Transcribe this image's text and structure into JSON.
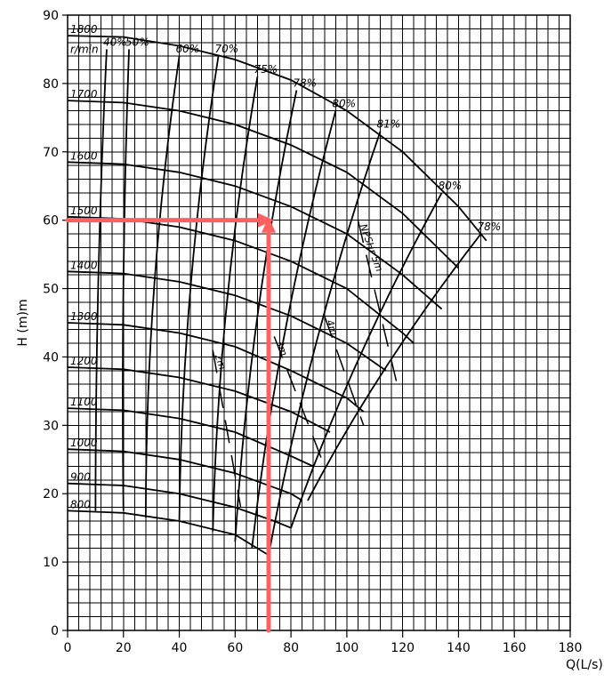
{
  "chart_data": {
    "type": "line",
    "xlabel": "Q(L/s)",
    "ylabel": "H (m)m",
    "xlim": [
      0,
      180
    ],
    "ylim": [
      0,
      90
    ],
    "x_ticks": [
      0,
      20,
      40,
      60,
      80,
      100,
      120,
      140,
      160,
      180
    ],
    "y_ticks": [
      0,
      10,
      20,
      30,
      40,
      50,
      60,
      70,
      80,
      90
    ],
    "speed_unit": "r/min",
    "series": [
      {
        "name": "1800",
        "points": [
          [
            0,
            87
          ],
          [
            20,
            86.8
          ],
          [
            40,
            85.5
          ],
          [
            60,
            83.5
          ],
          [
            80,
            80.5
          ],
          [
            100,
            76
          ],
          [
            120,
            70
          ],
          [
            140,
            62
          ],
          [
            150,
            57
          ]
        ]
      },
      {
        "name": "1700",
        "points": [
          [
            0,
            77.5
          ],
          [
            20,
            77.2
          ],
          [
            40,
            76
          ],
          [
            60,
            74
          ],
          [
            80,
            71
          ],
          [
            100,
            67
          ],
          [
            120,
            61
          ],
          [
            140,
            53
          ]
        ]
      },
      {
        "name": "1600",
        "points": [
          [
            0,
            68.5
          ],
          [
            20,
            68.2
          ],
          [
            40,
            67
          ],
          [
            60,
            65
          ],
          [
            80,
            62
          ],
          [
            100,
            58
          ],
          [
            120,
            52
          ],
          [
            134,
            47
          ]
        ]
      },
      {
        "name": "1500",
        "points": [
          [
            0,
            60.5
          ],
          [
            20,
            60.2
          ],
          [
            40,
            59
          ],
          [
            60,
            57
          ],
          [
            80,
            54
          ],
          [
            100,
            50
          ],
          [
            120,
            43.5
          ],
          [
            124,
            42
          ]
        ]
      },
      {
        "name": "1400",
        "points": [
          [
            0,
            52.5
          ],
          [
            20,
            52.2
          ],
          [
            40,
            51
          ],
          [
            60,
            49
          ],
          [
            80,
            46
          ],
          [
            100,
            42
          ],
          [
            114,
            38
          ]
        ]
      },
      {
        "name": "1300",
        "points": [
          [
            0,
            45
          ],
          [
            20,
            44.7
          ],
          [
            40,
            43.5
          ],
          [
            60,
            41.5
          ],
          [
            80,
            38
          ],
          [
            100,
            34
          ],
          [
            106,
            32
          ]
        ]
      },
      {
        "name": "1200",
        "points": [
          [
            0,
            38.5
          ],
          [
            20,
            38.2
          ],
          [
            40,
            37
          ],
          [
            60,
            35
          ],
          [
            80,
            32
          ],
          [
            94,
            29
          ]
        ]
      },
      {
        "name": "1100",
        "points": [
          [
            0,
            32.5
          ],
          [
            20,
            32.2
          ],
          [
            40,
            31
          ],
          [
            60,
            29
          ],
          [
            80,
            25.5
          ],
          [
            88,
            24
          ]
        ]
      },
      {
        "name": "1000",
        "points": [
          [
            0,
            26.5
          ],
          [
            20,
            26.2
          ],
          [
            40,
            25
          ],
          [
            60,
            23
          ],
          [
            80,
            20
          ],
          [
            84,
            19
          ]
        ]
      },
      {
        "name": "900",
        "points": [
          [
            0,
            21.5
          ],
          [
            20,
            21.2
          ],
          [
            40,
            20
          ],
          [
            60,
            18
          ],
          [
            74,
            16
          ],
          [
            80,
            15
          ]
        ]
      },
      {
        "name": "800",
        "points": [
          [
            0,
            17.5
          ],
          [
            20,
            17.2
          ],
          [
            40,
            16
          ],
          [
            60,
            14
          ],
          [
            72,
            11
          ]
        ]
      }
    ],
    "efficiency_labels": [
      "40%",
      "50%",
      "60%",
      "70%",
      "75%",
      "78%",
      "80%",
      "81%",
      "80%",
      "78%"
    ],
    "npsh_labels": [
      "NPSHr 5m",
      "4m",
      "3m",
      "2m"
    ],
    "operating_point": {
      "Q": 72,
      "H": 60
    }
  }
}
